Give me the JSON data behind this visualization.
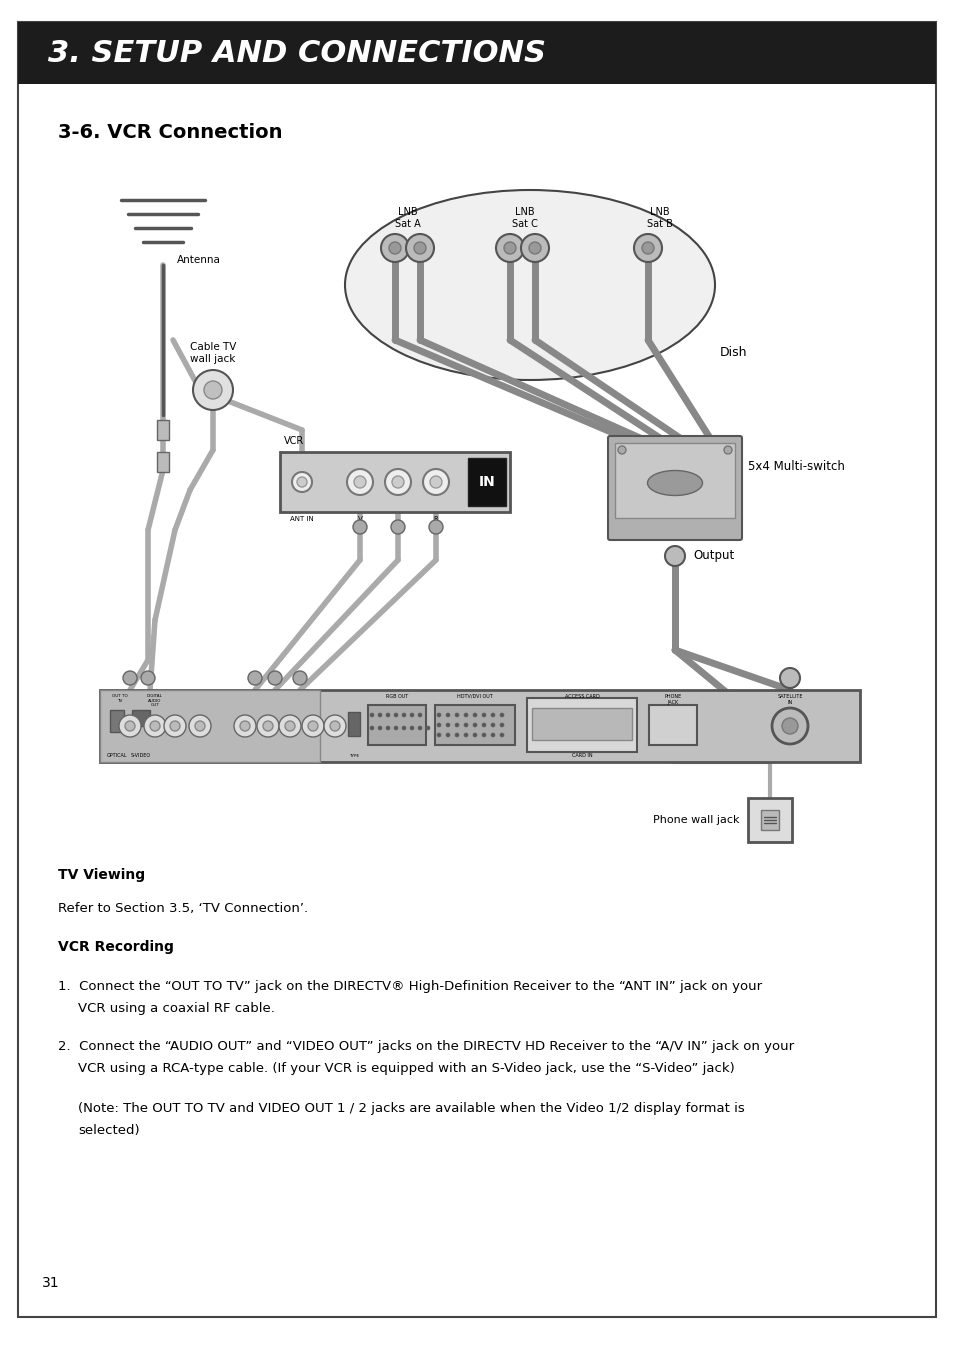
{
  "page_bg": "#ffffff",
  "border_color": "#444444",
  "header_bg": "#1c1c1c",
  "header_text": "3. SETUP AND CONNECTIONS",
  "header_text_color": "#ffffff",
  "section_title": "3-6. VCR Connection",
  "diagram_labels": {
    "lnb_sat_a": "LNB\nSat A",
    "lnb_sat_b": "LNB\nSat B",
    "lnb_sat_c": "LNB\nSat C",
    "dish": "Dish",
    "antenna": "Antenna",
    "cable_tv": "Cable TV\nwall jack",
    "vcr": "VCR",
    "multiswitch": "5x4 Multi-switch",
    "output": "Output",
    "phone_wall": "Phone wall jack"
  },
  "page_number": "31",
  "cable_color": "#aaaaaa",
  "cable_dark": "#888888",
  "device_color": "#cccccc",
  "device_light": "#e0e0e0",
  "device_dark": "#999999",
  "text_color": "#000000"
}
